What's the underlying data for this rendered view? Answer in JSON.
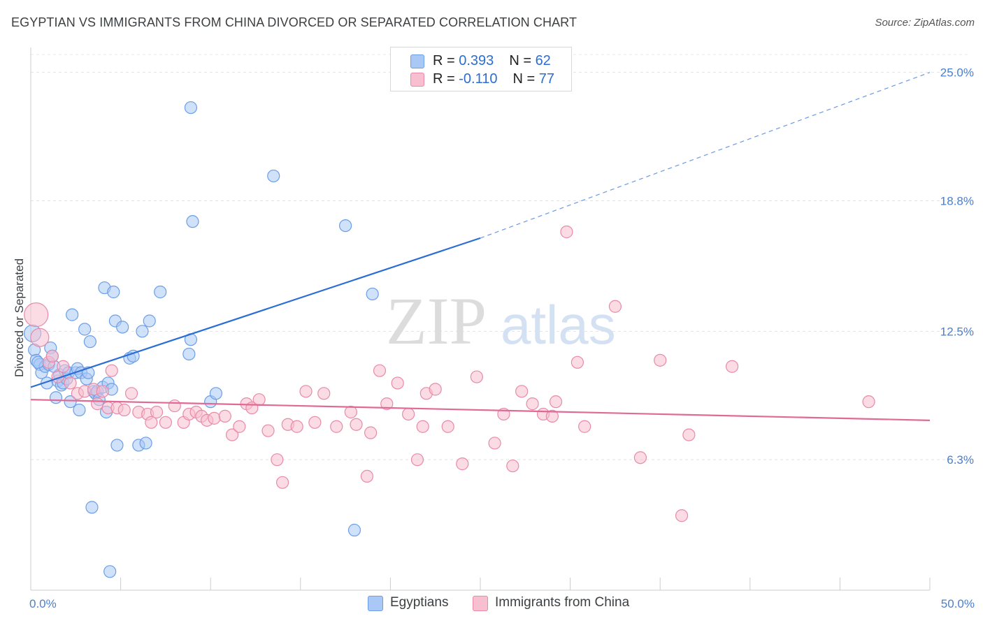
{
  "title": "EGYPTIAN VS IMMIGRANTS FROM CHINA DIVORCED OR SEPARATED CORRELATION CHART",
  "source": "Source: ZipAtlas.com",
  "watermark": {
    "zip": "ZIP",
    "atlas": "atlas"
  },
  "legend": {
    "rows": [
      {
        "r_label": "R = ",
        "r_value": "0.393",
        "n_label": "N = ",
        "n_value": "62",
        "color": "#a9c8f5",
        "border": "#6b9ee8"
      },
      {
        "r_label": "R = ",
        "r_value": "-0.110",
        "n_label": "N = ",
        "n_value": "77",
        "color": "#f7bfd0",
        "border": "#e88aa8"
      }
    ]
  },
  "bottom_legend": [
    {
      "label": "Egyptians",
      "color": "#a9c8f5",
      "border": "#6b9ee8"
    },
    {
      "label": "Immigrants from China",
      "color": "#f7bfd0",
      "border": "#e88aa8"
    }
  ],
  "chart_data": {
    "type": "scatter",
    "title": "EGYPTIAN VS IMMIGRANTS FROM CHINA DIVORCED OR SEPARATED CORRELATION CHART",
    "xlabel": "",
    "ylabel": "Divorced or Separated",
    "xlim": [
      0,
      50
    ],
    "ylim": [
      0,
      26
    ],
    "x_tick_labels": [
      {
        "value": 0,
        "label": "0.0%"
      },
      {
        "value": 50,
        "label": "50.0%"
      }
    ],
    "y_tick_labels": [
      {
        "value": 6.3,
        "label": "6.3%"
      },
      {
        "value": 12.5,
        "label": "12.5%"
      },
      {
        "value": 18.8,
        "label": "18.8%"
      },
      {
        "value": 25.0,
        "label": "25.0%"
      }
    ],
    "grid": true,
    "series": [
      {
        "name": "Egyptians",
        "color": "#6b9ee8",
        "fill": "#a9c8f5",
        "trend": {
          "x0": 0,
          "y0": 9.8,
          "x1": 25,
          "y1": 17.0,
          "dashed_to_x": 50,
          "dashed_to_y": 25.0,
          "color": "#2b6dd6"
        },
        "points": [
          [
            0.2,
            11.6
          ],
          [
            0.3,
            11.1
          ],
          [
            0.5,
            10.9
          ],
          [
            0.6,
            10.5
          ],
          [
            0.8,
            10.8
          ],
          [
            0.9,
            10.0
          ],
          [
            1.0,
            10.9
          ],
          [
            1.1,
            11.7
          ],
          [
            1.2,
            11.3
          ],
          [
            1.4,
            9.3
          ],
          [
            1.5,
            10.1
          ],
          [
            1.6,
            10.4
          ],
          [
            1.7,
            9.9
          ],
          [
            1.8,
            10.0
          ],
          [
            1.9,
            10.6
          ],
          [
            2.0,
            10.2
          ],
          [
            2.1,
            10.5
          ],
          [
            2.2,
            9.1
          ],
          [
            2.3,
            13.3
          ],
          [
            2.5,
            10.5
          ],
          [
            2.6,
            10.7
          ],
          [
            2.7,
            8.7
          ],
          [
            2.8,
            10.5
          ],
          [
            3.0,
            12.6
          ],
          [
            3.1,
            10.2
          ],
          [
            3.2,
            10.5
          ],
          [
            3.3,
            12.0
          ],
          [
            3.4,
            4.0
          ],
          [
            3.5,
            9.6
          ],
          [
            3.6,
            9.5
          ],
          [
            3.7,
            9.6
          ],
          [
            3.8,
            9.2
          ],
          [
            4.0,
            9.8
          ],
          [
            4.1,
            14.6
          ],
          [
            4.2,
            8.6
          ],
          [
            4.3,
            10.0
          ],
          [
            4.4,
            0.9
          ],
          [
            4.5,
            9.7
          ],
          [
            4.6,
            14.4
          ],
          [
            4.7,
            13.0
          ],
          [
            4.8,
            7.0
          ],
          [
            5.1,
            12.7
          ],
          [
            5.5,
            11.2
          ],
          [
            5.7,
            11.3
          ],
          [
            6.0,
            7.0
          ],
          [
            6.2,
            12.5
          ],
          [
            6.4,
            7.1
          ],
          [
            6.6,
            13.0
          ],
          [
            7.2,
            14.4
          ],
          [
            8.8,
            11.4
          ],
          [
            8.9,
            23.3
          ],
          [
            8.9,
            12.1
          ],
          [
            9.0,
            17.8
          ],
          [
            10.0,
            9.1
          ],
          [
            10.3,
            9.5
          ],
          [
            13.5,
            20.0
          ],
          [
            17.5,
            17.6
          ],
          [
            18.0,
            2.9
          ],
          [
            19.0,
            14.3
          ],
          [
            0.1,
            12.4
          ],
          [
            0.4,
            11.0
          ],
          [
            1.3,
            10.8
          ]
        ]
      },
      {
        "name": "Immigrants from China",
        "color": "#e88aa8",
        "fill": "#f7bfd0",
        "trend": {
          "x0": 0,
          "y0": 9.2,
          "x1": 50,
          "y1": 8.2,
          "color": "#e06a95"
        },
        "points": [
          [
            0.3,
            13.3
          ],
          [
            0.5,
            12.2
          ],
          [
            1.0,
            11.0
          ],
          [
            1.2,
            11.3
          ],
          [
            1.5,
            10.3
          ],
          [
            1.8,
            10.8
          ],
          [
            2.2,
            10.0
          ],
          [
            2.6,
            9.5
          ],
          [
            3.0,
            9.6
          ],
          [
            3.5,
            9.7
          ],
          [
            3.7,
            9.0
          ],
          [
            4.0,
            9.6
          ],
          [
            4.3,
            8.8
          ],
          [
            4.5,
            10.6
          ],
          [
            4.8,
            8.8
          ],
          [
            5.2,
            8.7
          ],
          [
            5.6,
            9.5
          ],
          [
            6.0,
            8.6
          ],
          [
            6.5,
            8.5
          ],
          [
            6.7,
            8.1
          ],
          [
            7.0,
            8.6
          ],
          [
            7.5,
            8.1
          ],
          [
            8.0,
            8.9
          ],
          [
            8.5,
            8.1
          ],
          [
            8.8,
            8.5
          ],
          [
            9.2,
            8.6
          ],
          [
            9.5,
            8.4
          ],
          [
            9.8,
            8.2
          ],
          [
            10.2,
            8.3
          ],
          [
            10.8,
            8.4
          ],
          [
            11.2,
            7.5
          ],
          [
            11.6,
            7.9
          ],
          [
            12.0,
            9.0
          ],
          [
            12.3,
            8.8
          ],
          [
            12.7,
            9.2
          ],
          [
            13.2,
            7.7
          ],
          [
            13.7,
            6.3
          ],
          [
            14.0,
            5.2
          ],
          [
            14.3,
            8.0
          ],
          [
            14.8,
            7.9
          ],
          [
            15.3,
            9.6
          ],
          [
            15.8,
            8.1
          ],
          [
            16.3,
            9.5
          ],
          [
            17.0,
            7.9
          ],
          [
            17.8,
            8.6
          ],
          [
            18.1,
            8.0
          ],
          [
            18.7,
            5.5
          ],
          [
            18.9,
            7.6
          ],
          [
            19.4,
            10.6
          ],
          [
            19.8,
            9.0
          ],
          [
            20.4,
            10.0
          ],
          [
            21.0,
            8.5
          ],
          [
            21.5,
            6.3
          ],
          [
            21.8,
            7.9
          ],
          [
            22.0,
            9.5
          ],
          [
            22.5,
            9.7
          ],
          [
            23.2,
            7.9
          ],
          [
            24.0,
            6.1
          ],
          [
            24.8,
            10.3
          ],
          [
            25.8,
            7.1
          ],
          [
            26.3,
            8.5
          ],
          [
            26.8,
            6.0
          ],
          [
            27.3,
            9.6
          ],
          [
            27.9,
            9.0
          ],
          [
            28.5,
            8.5
          ],
          [
            29.0,
            8.4
          ],
          [
            29.2,
            9.1
          ],
          [
            29.8,
            17.3
          ],
          [
            30.4,
            11.0
          ],
          [
            30.8,
            7.9
          ],
          [
            32.5,
            13.7
          ],
          [
            33.9,
            6.4
          ],
          [
            35.0,
            11.1
          ],
          [
            36.2,
            3.6
          ],
          [
            36.6,
            7.5
          ],
          [
            39.0,
            10.8
          ],
          [
            46.6,
            9.1
          ]
        ]
      }
    ]
  }
}
